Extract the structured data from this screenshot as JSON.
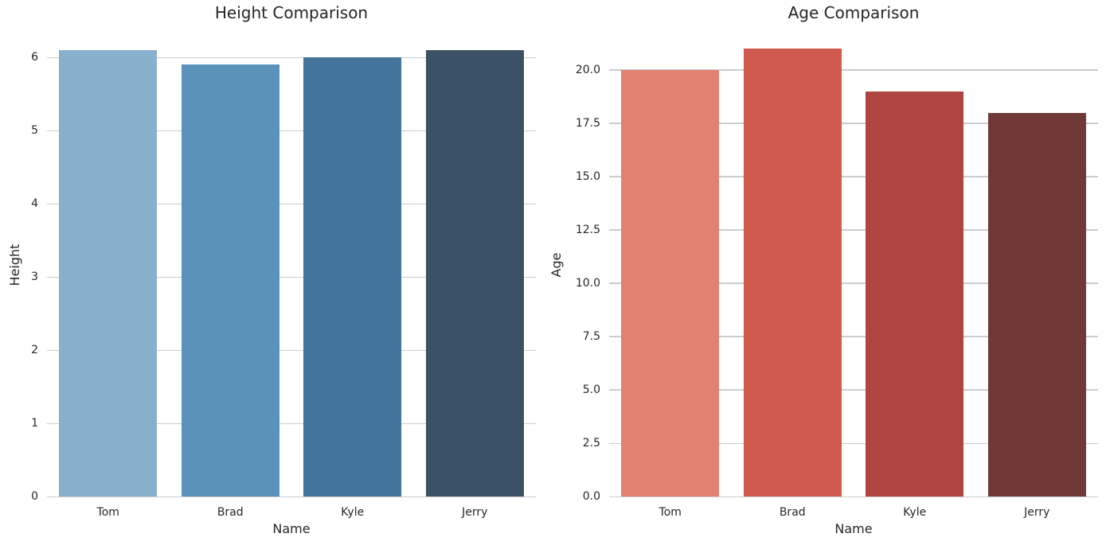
{
  "figure": {
    "background_color": "#ffffff",
    "text_color": "#262626",
    "grid_color": "#cccccc"
  },
  "chart_data": [
    {
      "type": "bar",
      "title": "Height Comparison",
      "xlabel": "Name",
      "ylabel": "Height",
      "categories": [
        "Tom",
        "Brad",
        "Kyle",
        "Jerry"
      ],
      "values": [
        6.1,
        5.9,
        6.0,
        6.1
      ],
      "bar_colors": [
        "#88AFCB",
        "#5B92BC",
        "#44749B",
        "#3B5266"
      ],
      "ylim": [
        0,
        6.34
      ],
      "yticks": [
        0,
        1,
        2,
        3,
        4,
        5,
        6
      ],
      "ytick_labels": [
        "0",
        "1",
        "2",
        "3",
        "4",
        "5",
        "6"
      ],
      "grid": "horizontal-only",
      "legend": "none"
    },
    {
      "type": "bar",
      "title": "Age Comparison",
      "xlabel": "Name",
      "ylabel": "Age",
      "categories": [
        "Tom",
        "Brad",
        "Kyle",
        "Jerry"
      ],
      "values": [
        20,
        21,
        19,
        18
      ],
      "bar_colors": [
        "#E08172",
        "#D05A4E",
        "#B04440",
        "#6F3937"
      ],
      "ylim": [
        0,
        21.75
      ],
      "yticks": [
        0,
        2.5,
        5,
        7.5,
        10,
        12.5,
        15,
        17.5,
        20
      ],
      "ytick_labels": [
        "0.0",
        "2.5",
        "5.0",
        "7.5",
        "10.0",
        "12.5",
        "15.0",
        "17.5",
        "20.0"
      ],
      "grid": "horizontal-only",
      "legend": "none"
    }
  ]
}
